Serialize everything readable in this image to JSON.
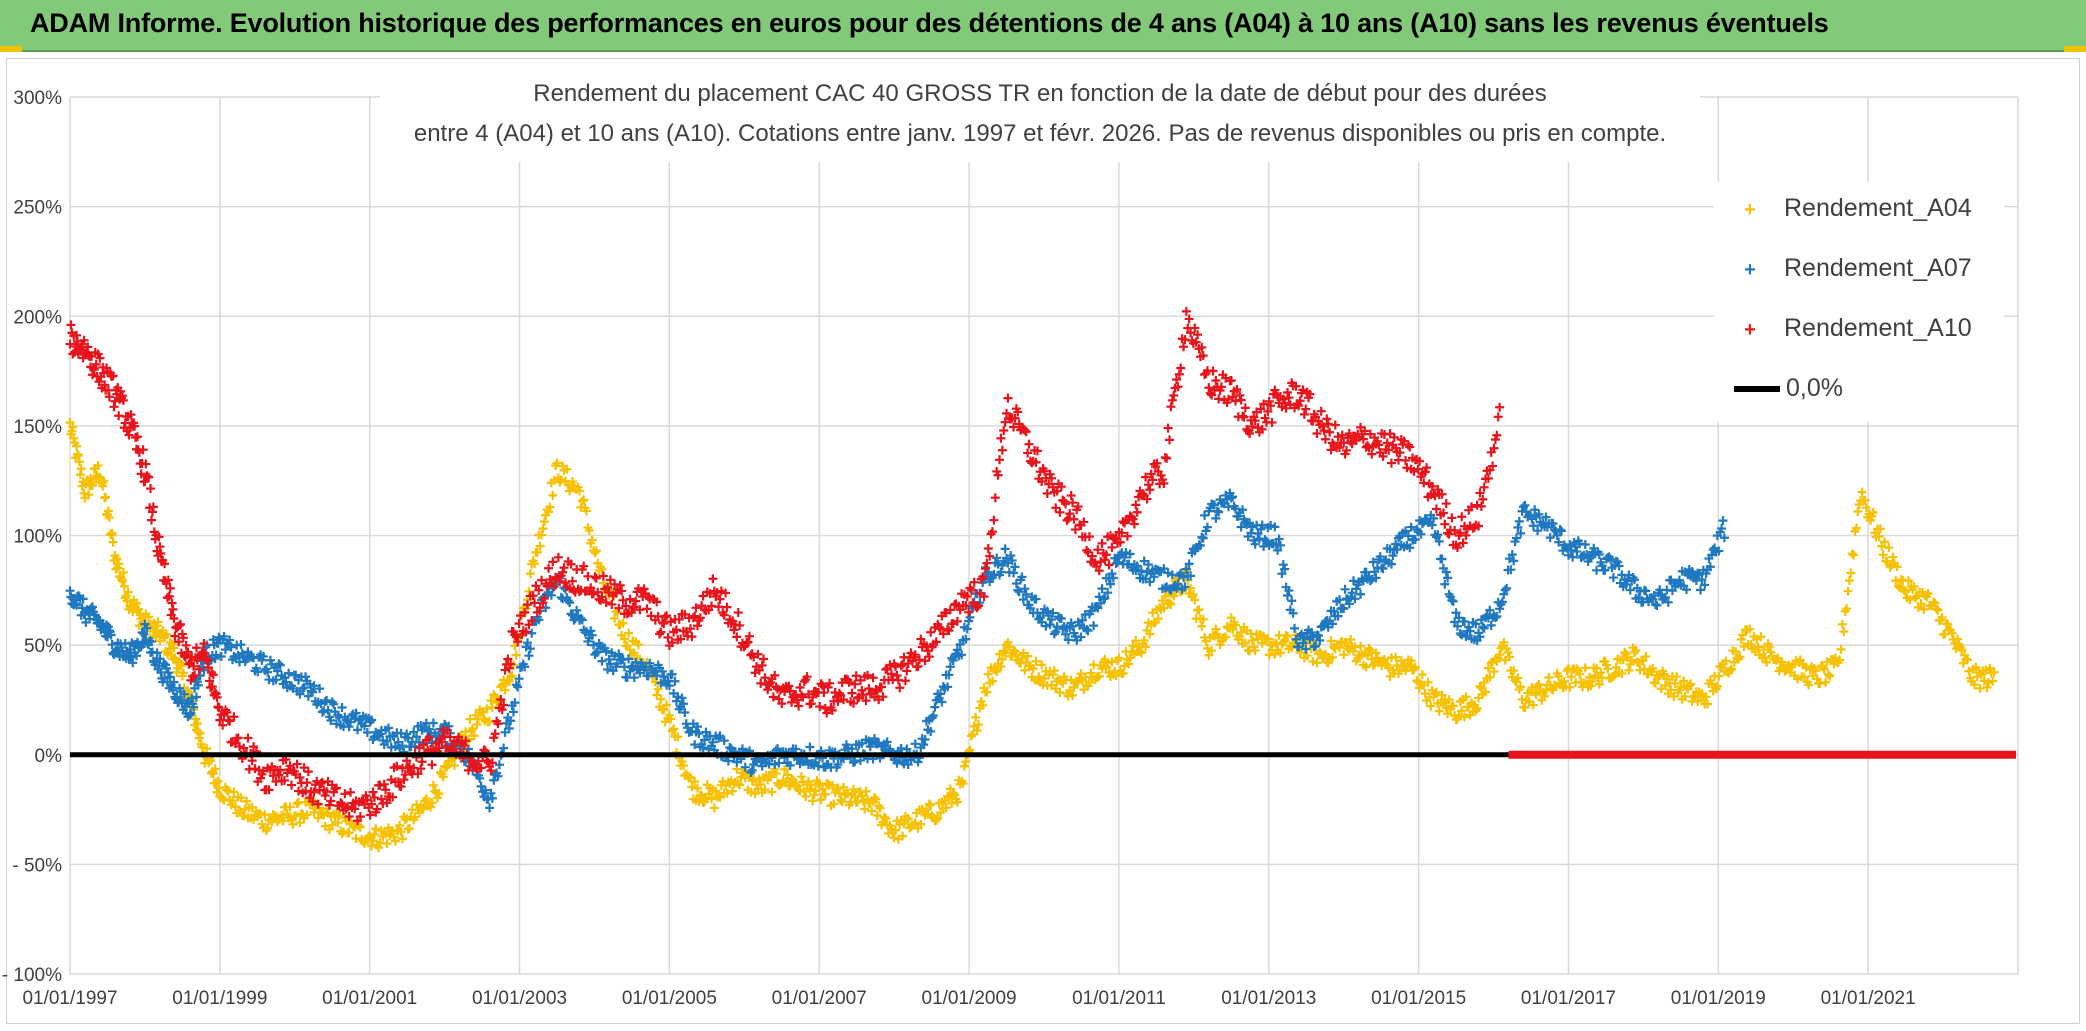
{
  "header": {
    "banner_title": "ADAM Informe. Evolution historique des performances en euros pour des détentions de 4 ans (A04) à 10 ans (A10) sans les revenus éventuels",
    "colors": {
      "banner": "#82c97a",
      "accent": "#f2c200"
    }
  },
  "chart_data": {
    "type": "scatter",
    "title": "Rendement du placement CAC 40 GROSS TR en fonction de la date de début pour des durées",
    "subtitle": "entre 4 (A04) et 10 ans (A10). Cotations entre janv. 1997 et févr. 2026. Pas de revenus disponibles ou pris en compte.",
    "xlabel": "",
    "ylabel": "",
    "x_range": [
      "01/01/1997",
      "31/12/2022"
    ],
    "ylim": [
      -100,
      300
    ],
    "y_ticks": [
      300,
      250,
      200,
      150,
      100,
      50,
      0,
      -50,
      -100
    ],
    "y_tick_labels": [
      "300%",
      "250%",
      "200%",
      "150%",
      "100%",
      "50%",
      "0%",
      "- 50%",
      "- 100%"
    ],
    "x_tick_labels": [
      "01/01/1997",
      "01/01/1999",
      "01/01/2001",
      "01/01/2003",
      "01/01/2005",
      "01/01/2007",
      "01/01/2009",
      "01/01/2011",
      "01/01/2013",
      "01/01/2015",
      "01/01/2017",
      "01/01/2019",
      "01/01/2021"
    ],
    "x_tick_years": [
      1997,
      1999,
      2001,
      2003,
      2005,
      2007,
      2009,
      2011,
      2013,
      2015,
      2017,
      2019,
      2021
    ],
    "grid": true,
    "legend_position": "top-right",
    "series": [
      {
        "name": "Rendement_A04",
        "color": "#f5c100",
        "x": [
          1997.0,
          1997.2,
          1997.4,
          1997.6,
          1997.8,
          1998.0,
          1998.2,
          1998.4,
          1998.6,
          1998.8,
          1999.0,
          1999.3,
          1999.6,
          1999.9,
          2000.2,
          2000.5,
          2000.8,
          2001.1,
          2001.4,
          2001.7,
          2002.0,
          2002.3,
          2002.6,
          2002.9,
          2003.2,
          2003.5,
          2003.8,
          2004.1,
          2004.4,
          2004.7,
          2005.0,
          2005.3,
          2005.6,
          2005.9,
          2006.2,
          2006.5,
          2006.8,
          2007.1,
          2007.4,
          2007.7,
          2008.0,
          2008.3,
          2008.6,
          2008.9,
          2009.2,
          2009.5,
          2009.8,
          2010.1,
          2010.4,
          2010.7,
          2011.0,
          2011.3,
          2011.6,
          2011.9,
          2012.2,
          2012.5,
          2012.8,
          2013.1,
          2013.4,
          2013.7,
          2014.0,
          2014.3,
          2014.6,
          2014.9,
          2015.2,
          2015.5,
          2015.8,
          2016.1,
          2016.4,
          2016.7,
          2017.0,
          2017.3,
          2017.6,
          2017.9,
          2018.2,
          2018.5,
          2018.8,
          2019.1,
          2019.4,
          2019.7,
          2020.0,
          2020.3,
          2020.6,
          2020.9,
          2021.2,
          2021.5,
          2021.8,
          2022.1,
          2022.4,
          2022.7
        ],
        "y": [
          150,
          120,
          130,
          90,
          70,
          60,
          55,
          45,
          25,
          0,
          -15,
          -25,
          -30,
          -28,
          -25,
          -30,
          -35,
          -38,
          -35,
          -25,
          -10,
          10,
          20,
          40,
          90,
          130,
          120,
          80,
          55,
          40,
          15,
          -15,
          -20,
          -10,
          -15,
          -10,
          -15,
          -18,
          -20,
          -22,
          -35,
          -30,
          -25,
          -15,
          30,
          50,
          40,
          35,
          30,
          40,
          40,
          50,
          70,
          80,
          50,
          60,
          50,
          50,
          50,
          45,
          50,
          45,
          40,
          40,
          25,
          20,
          25,
          50,
          25,
          30,
          35,
          35,
          40,
          45,
          35,
          30,
          25,
          40,
          55,
          45,
          40,
          35,
          40,
          120,
          95,
          75,
          70,
          55,
          35,
          35
        ],
        "spread": 5
      },
      {
        "name": "Rendement_A07",
        "color": "#1f78c0",
        "x": [
          1997.0,
          1997.2,
          1997.4,
          1997.6,
          1997.8,
          1998.0,
          1998.2,
          1998.4,
          1998.6,
          1998.8,
          1999.0,
          1999.3,
          1999.6,
          1999.9,
          2000.2,
          2000.5,
          2000.8,
          2001.1,
          2001.4,
          2001.7,
          2002.0,
          2002.3,
          2002.6,
          2002.9,
          2003.2,
          2003.5,
          2003.8,
          2004.1,
          2004.4,
          2004.7,
          2005.0,
          2005.3,
          2005.6,
          2005.9,
          2006.2,
          2006.5,
          2006.8,
          2007.1,
          2007.4,
          2007.7,
          2008.0,
          2008.3,
          2008.6,
          2008.9,
          2009.2,
          2009.5,
          2009.8,
          2010.1,
          2010.4,
          2010.7,
          2011.0,
          2011.3,
          2011.6,
          2011.9,
          2012.2,
          2012.5,
          2012.8,
          2013.1,
          2013.4,
          2013.7,
          2014.0,
          2014.3,
          2014.6,
          2014.9,
          2015.2,
          2015.5,
          2015.8,
          2016.1,
          2016.4,
          2016.7,
          2017.0,
          2017.3,
          2017.6,
          2017.9,
          2018.2,
          2018.5,
          2018.8,
          2019.1
        ],
        "y": [
          75,
          65,
          60,
          50,
          45,
          55,
          40,
          30,
          20,
          45,
          50,
          45,
          40,
          35,
          30,
          20,
          15,
          10,
          5,
          10,
          10,
          0,
          -20,
          20,
          60,
          80,
          60,
          45,
          40,
          40,
          35,
          10,
          5,
          0,
          -5,
          0,
          0,
          -2,
          0,
          3,
          0,
          0,
          25,
          50,
          80,
          90,
          70,
          60,
          55,
          65,
          90,
          85,
          80,
          80,
          110,
          115,
          100,
          100,
          50,
          55,
          70,
          80,
          90,
          100,
          105,
          60,
          55,
          70,
          110,
          105,
          95,
          90,
          85,
          75,
          70,
          80,
          80,
          105
        ],
        "spread": 5
      },
      {
        "name": "Rendement_A10",
        "color": "#e8141b",
        "x": [
          1997.0,
          1997.2,
          1997.4,
          1997.6,
          1997.8,
          1998.0,
          1998.2,
          1998.4,
          1998.6,
          1998.8,
          1999.0,
          1999.3,
          1999.6,
          1999.9,
          2000.2,
          2000.5,
          2000.8,
          2001.1,
          2001.4,
          2001.7,
          2002.0,
          2002.3,
          2002.6,
          2002.9,
          2003.2,
          2003.5,
          2003.8,
          2004.1,
          2004.4,
          2004.7,
          2005.0,
          2005.3,
          2005.6,
          2005.9,
          2006.2,
          2006.5,
          2006.8,
          2007.1,
          2007.4,
          2007.7,
          2008.0,
          2008.3,
          2008.6,
          2008.9,
          2009.2,
          2009.5,
          2009.8,
          2010.1,
          2010.4,
          2010.7,
          2011.0,
          2011.3,
          2011.6,
          2011.9,
          2012.2,
          2012.5,
          2012.8,
          2013.1,
          2013.4,
          2013.7,
          2014.0,
          2014.3,
          2014.6,
          2014.9,
          2015.2,
          2015.5,
          2015.8,
          2016.1
        ],
        "y": [
          190,
          185,
          175,
          165,
          150,
          130,
          90,
          60,
          40,
          45,
          20,
          5,
          -10,
          -5,
          -15,
          -20,
          -25,
          -20,
          -10,
          0,
          5,
          0,
          -5,
          50,
          70,
          85,
          80,
          75,
          70,
          70,
          55,
          60,
          75,
          60,
          40,
          25,
          30,
          25,
          30,
          30,
          35,
          45,
          55,
          70,
          75,
          160,
          140,
          120,
          110,
          90,
          95,
          120,
          130,
          200,
          170,
          165,
          150,
          160,
          165,
          150,
          140,
          145,
          140,
          135,
          120,
          100,
          110,
          155
        ],
        "spread": 7
      }
    ],
    "zero_series": {
      "name": "0,0%",
      "color": "#000000",
      "y": 0
    },
    "red_zero_from": 2016.2,
    "colors": {
      "grid": "#d9d9d9",
      "axis_text": "#404040"
    }
  }
}
